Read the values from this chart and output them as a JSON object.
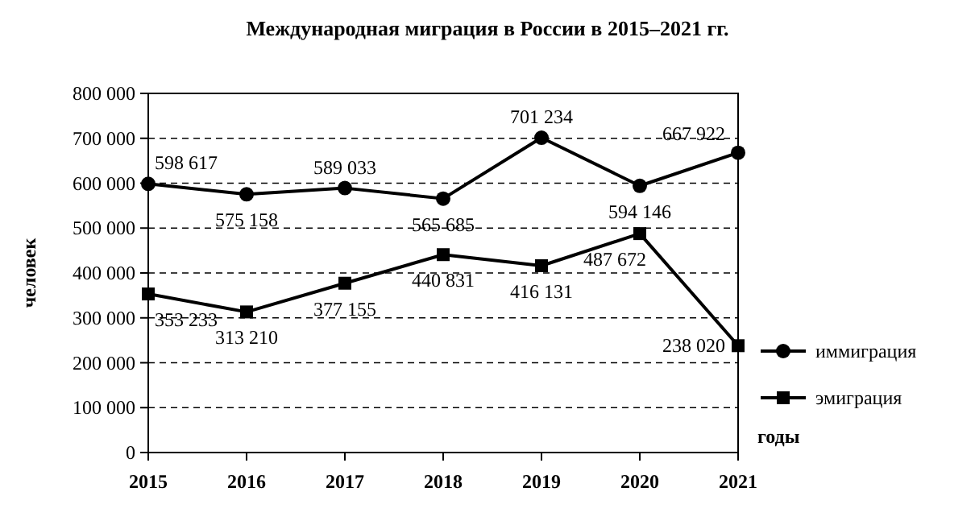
{
  "chart_data": {
    "type": "line",
    "title": "Международная миграция в России в 2015–2021 гг.",
    "xlabel": "годы",
    "ylabel": "человек",
    "x": [
      2015,
      2016,
      2017,
      2018,
      2019,
      2020,
      2021
    ],
    "xlim": [
      2015,
      2021
    ],
    "xticks": [
      2015,
      2016,
      2017,
      2018,
      2019,
      2020,
      2021
    ],
    "ylim": [
      0,
      800000
    ],
    "yticks": [
      {
        "value": 0,
        "label": "0"
      },
      {
        "value": 100000,
        "label": "100 000"
      },
      {
        "value": 200000,
        "label": "200 000"
      },
      {
        "value": 300000,
        "label": "300 000"
      },
      {
        "value": 400000,
        "label": "400 000"
      },
      {
        "value": 500000,
        "label": "500 000"
      },
      {
        "value": 600000,
        "label": "600 000"
      },
      {
        "value": 700000,
        "label": "700 000"
      },
      {
        "value": 800000,
        "label": "800 000"
      }
    ],
    "grid": "y",
    "legend": "right",
    "data_labels": true,
    "line_style": "solid",
    "series": [
      {
        "name": "иммиграция",
        "color": "#000000",
        "marker": "circle",
        "values": [
          598617,
          575158,
          589033,
          565685,
          701234,
          594146,
          667922
        ]
      },
      {
        "name": "эмиграция",
        "color": "#000000",
        "marker": "square",
        "values": [
          353233,
          313210,
          377155,
          440831,
          416131,
          487672,
          238020
        ]
      }
    ]
  }
}
